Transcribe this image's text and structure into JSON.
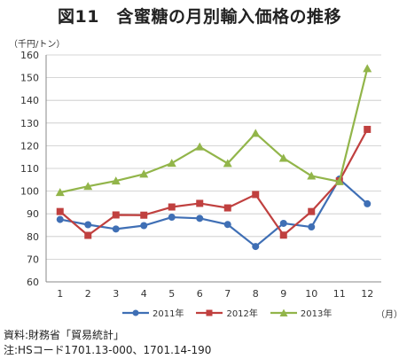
{
  "title": "図11　含蜜糖の月別輸入価格の推移",
  "notes": {
    "source": "資料:財務省「貿易統計」",
    "note": "注:HSコード1701.13-000、1701.14-190"
  },
  "chart_data": {
    "type": "line",
    "ylabel": "（千円/トン）",
    "xlabel": "（月）",
    "ylim": [
      60,
      160
    ],
    "yticks": [
      60,
      70,
      80,
      90,
      100,
      110,
      120,
      130,
      140,
      150,
      160
    ],
    "categories": [
      "1",
      "2",
      "3",
      "4",
      "5",
      "6",
      "7",
      "8",
      "9",
      "10",
      "11",
      "12"
    ],
    "grid": true,
    "legend": "bottom",
    "series": [
      {
        "name": "2011年",
        "color": "#3f6fb5",
        "marker": "circle",
        "values": [
          87.5,
          85.2,
          83.3,
          84.8,
          88.5,
          88.0,
          85.3,
          75.6,
          85.8,
          84.2,
          105.3,
          94.4
        ]
      },
      {
        "name": "2012年",
        "color": "#c0403f",
        "marker": "square",
        "values": [
          91.0,
          80.5,
          89.5,
          89.4,
          93.0,
          94.6,
          92.6,
          98.5,
          80.6,
          91.0,
          104.5,
          127.2
        ]
      },
      {
        "name": "2013年",
        "color": "#92b54a",
        "marker": "triangle",
        "values": [
          99.4,
          102.1,
          104.5,
          107.5,
          112.3,
          119.5,
          112.2,
          125.5,
          114.5,
          106.7,
          104.2,
          154.0
        ]
      }
    ]
  }
}
